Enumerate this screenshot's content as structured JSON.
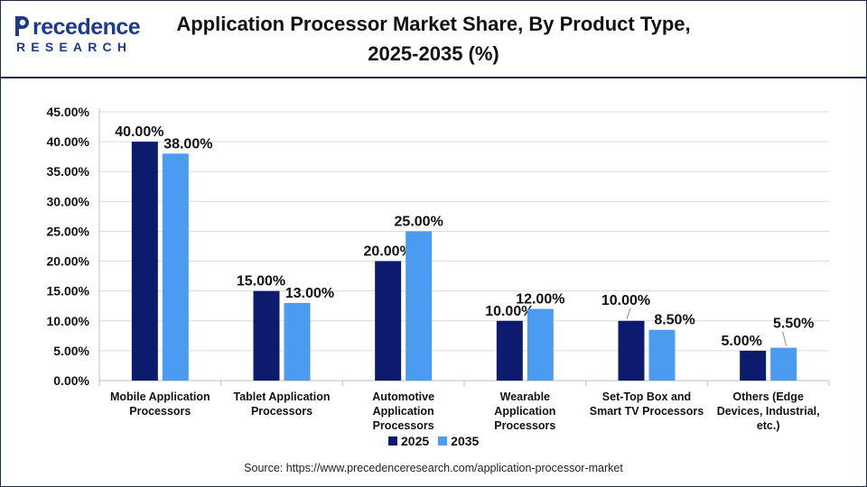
{
  "header": {
    "logo_word": "recedence",
    "logo_sub": "RESEARCH",
    "title_line1": "Application Processor Market Share, By Product Type,",
    "title_line2": "2025-2035 (%)"
  },
  "colors": {
    "series_2025": "#0d1b6e",
    "series_2035": "#4b9cf0",
    "brand": "#1f3a8a",
    "grid": "#dcdcdc"
  },
  "chart_data": {
    "type": "bar",
    "title": "Application Processor Market Share, By Product Type, 2025-2035 (%)",
    "categories": [
      [
        "Mobile Application",
        "Processors"
      ],
      [
        "Tablet Application",
        "Processors"
      ],
      [
        "Automotive",
        "Application",
        "Processors"
      ],
      [
        "Wearable",
        "Application",
        "Processors"
      ],
      [
        "Set-Top Box and",
        "Smart TV Processors"
      ],
      [
        "Others (Edge",
        "Devices, Industrial,",
        "etc.)"
      ]
    ],
    "series": [
      {
        "name": "2025",
        "values": [
          40.0,
          15.0,
          20.0,
          10.0,
          10.0,
          5.0
        ],
        "labels": [
          "40.00%",
          "15.00%",
          "20.00%",
          "10.00%",
          "10.00%",
          "5.00%"
        ]
      },
      {
        "name": "2035",
        "values": [
          38.0,
          13.0,
          25.0,
          12.0,
          8.5,
          5.5
        ],
        "labels": [
          "38.00%",
          "13.00%",
          "25.00%",
          "12.00%",
          "8.50%",
          "5.50%"
        ]
      }
    ],
    "ylim": [
      0,
      45
    ],
    "yticks": [
      "0.00%",
      "5.00%",
      "10.00%",
      "15.00%",
      "20.00%",
      "25.00%",
      "30.00%",
      "35.00%",
      "40.00%",
      "45.00%"
    ],
    "grid": true,
    "legend": "bottom-center"
  },
  "source": "Source: https://www.precedenceresearch.com/application-processor-market"
}
